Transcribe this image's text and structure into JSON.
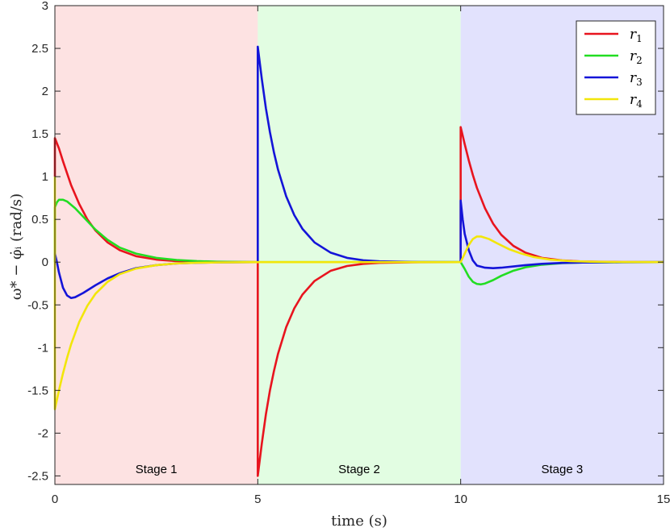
{
  "chart_data": {
    "type": "line",
    "xlabel": "time (s)",
    "ylabel": "ω* − φ̇ᵢ (rad/s)",
    "xlim": [
      0,
      15
    ],
    "ylim": [
      -2.6,
      3
    ],
    "x_ticks": [
      0,
      5,
      10,
      15
    ],
    "y_ticks": [
      -2.5,
      -2,
      -1.5,
      -1,
      -0.5,
      0,
      0.5,
      1,
      1.5,
      2,
      2.5,
      3
    ],
    "grid": false,
    "legend_position": "top-right",
    "stages": [
      {
        "label": "Stage 1",
        "x_start": 0,
        "x_end": 5,
        "color": "#fde2e2"
      },
      {
        "label": "Stage 2",
        "x_start": 5,
        "x_end": 10,
        "color": "#e2fde2"
      },
      {
        "label": "Stage 3",
        "x_start": 10,
        "x_end": 15,
        "color": "#e2e2fd"
      }
    ],
    "series": [
      {
        "name": "r1",
        "legend_base": "r",
        "legend_sub": "1",
        "color": "#e8141e",
        "points": [
          [
            0,
            1.0
          ],
          [
            0,
            1.45
          ],
          [
            0.1,
            1.33
          ],
          [
            0.2,
            1.18
          ],
          [
            0.3,
            1.04
          ],
          [
            0.4,
            0.9
          ],
          [
            0.6,
            0.68
          ],
          [
            0.8,
            0.5
          ],
          [
            1.0,
            0.37
          ],
          [
            1.3,
            0.23
          ],
          [
            1.6,
            0.14
          ],
          [
            2.0,
            0.07
          ],
          [
            2.5,
            0.03
          ],
          [
            3.0,
            0.012
          ],
          [
            3.5,
            0.005
          ],
          [
            4.0,
            0.002
          ],
          [
            5.0,
            0.0
          ],
          [
            5.0,
            -2.5
          ],
          [
            5.1,
            -2.12
          ],
          [
            5.2,
            -1.78
          ],
          [
            5.3,
            -1.5
          ],
          [
            5.4,
            -1.27
          ],
          [
            5.5,
            -1.07
          ],
          [
            5.7,
            -0.76
          ],
          [
            5.9,
            -0.54
          ],
          [
            6.1,
            -0.38
          ],
          [
            6.4,
            -0.22
          ],
          [
            6.8,
            -0.1
          ],
          [
            7.2,
            -0.045
          ],
          [
            7.6,
            -0.02
          ],
          [
            8.0,
            -0.008
          ],
          [
            9.0,
            -0.001
          ],
          [
            10.0,
            0.0
          ],
          [
            10.0,
            0.0
          ],
          [
            10.0,
            1.58
          ],
          [
            10.1,
            1.38
          ],
          [
            10.2,
            1.19
          ],
          [
            10.3,
            1.02
          ],
          [
            10.4,
            0.87
          ],
          [
            10.6,
            0.63
          ],
          [
            10.8,
            0.45
          ],
          [
            11.0,
            0.32
          ],
          [
            11.3,
            0.19
          ],
          [
            11.6,
            0.11
          ],
          [
            12.0,
            0.05
          ],
          [
            12.5,
            0.02
          ],
          [
            13.0,
            0.008
          ],
          [
            14.0,
            0.001
          ],
          [
            15.0,
            0.0
          ]
        ]
      },
      {
        "name": "r2",
        "legend_base": "r",
        "legend_sub": "2",
        "color": "#22dd22",
        "points": [
          [
            0,
            0.0
          ],
          [
            0,
            0.64
          ],
          [
            0.05,
            0.7
          ],
          [
            0.1,
            0.73
          ],
          [
            0.2,
            0.73
          ],
          [
            0.3,
            0.71
          ],
          [
            0.5,
            0.63
          ],
          [
            0.7,
            0.53
          ],
          [
            1.0,
            0.38
          ],
          [
            1.3,
            0.26
          ],
          [
            1.6,
            0.17
          ],
          [
            2.0,
            0.1
          ],
          [
            2.5,
            0.05
          ],
          [
            3.0,
            0.025
          ],
          [
            3.5,
            0.012
          ],
          [
            4.0,
            0.005
          ],
          [
            5.0,
            0.0
          ],
          [
            10.0,
            0.0
          ],
          [
            10.1,
            -0.08
          ],
          [
            10.2,
            -0.17
          ],
          [
            10.3,
            -0.23
          ],
          [
            10.4,
            -0.255
          ],
          [
            10.5,
            -0.26
          ],
          [
            10.6,
            -0.25
          ],
          [
            10.8,
            -0.21
          ],
          [
            11.0,
            -0.16
          ],
          [
            11.3,
            -0.1
          ],
          [
            11.6,
            -0.06
          ],
          [
            12.0,
            -0.03
          ],
          [
            12.5,
            -0.012
          ],
          [
            13.0,
            -0.005
          ],
          [
            14.0,
            -0.001
          ],
          [
            15.0,
            0.0
          ]
        ]
      },
      {
        "name": "r3",
        "legend_base": "r",
        "legend_sub": "3",
        "color": "#1414d8",
        "points": [
          [
            0,
            0.1
          ],
          [
            0.05,
            0.0
          ],
          [
            0.1,
            -0.12
          ],
          [
            0.2,
            -0.3
          ],
          [
            0.3,
            -0.39
          ],
          [
            0.4,
            -0.42
          ],
          [
            0.5,
            -0.41
          ],
          [
            0.7,
            -0.36
          ],
          [
            1.0,
            -0.27
          ],
          [
            1.3,
            -0.19
          ],
          [
            1.6,
            -0.13
          ],
          [
            2.0,
            -0.07
          ],
          [
            2.5,
            -0.035
          ],
          [
            3.0,
            -0.015
          ],
          [
            3.5,
            -0.007
          ],
          [
            4.0,
            -0.003
          ],
          [
            5.0,
            0.0
          ],
          [
            5.0,
            2.52
          ],
          [
            5.1,
            2.14
          ],
          [
            5.2,
            1.8
          ],
          [
            5.3,
            1.52
          ],
          [
            5.4,
            1.28
          ],
          [
            5.5,
            1.08
          ],
          [
            5.7,
            0.77
          ],
          [
            5.9,
            0.55
          ],
          [
            6.1,
            0.39
          ],
          [
            6.4,
            0.23
          ],
          [
            6.8,
            0.11
          ],
          [
            7.2,
            0.05
          ],
          [
            7.6,
            0.022
          ],
          [
            8.0,
            0.01
          ],
          [
            9.0,
            0.001
          ],
          [
            10.0,
            0.0
          ],
          [
            10.0,
            0.72
          ],
          [
            10.05,
            0.5
          ],
          [
            10.1,
            0.33
          ],
          [
            10.2,
            0.14
          ],
          [
            10.3,
            0.02
          ],
          [
            10.4,
            -0.04
          ],
          [
            10.6,
            -0.065
          ],
          [
            10.8,
            -0.07
          ],
          [
            11.0,
            -0.065
          ],
          [
            11.3,
            -0.05
          ],
          [
            11.6,
            -0.035
          ],
          [
            12.0,
            -0.02
          ],
          [
            12.5,
            -0.009
          ],
          [
            13.0,
            -0.004
          ],
          [
            14.0,
            -0.001
          ],
          [
            15.0,
            0.0
          ]
        ]
      },
      {
        "name": "r4",
        "legend_base": "r",
        "legend_sub": "4",
        "color": "#f2e60a",
        "points": [
          [
            0,
            1.0
          ],
          [
            0,
            -1.72
          ],
          [
            0.1,
            -1.5
          ],
          [
            0.2,
            -1.3
          ],
          [
            0.3,
            -1.12
          ],
          [
            0.4,
            -0.96
          ],
          [
            0.6,
            -0.7
          ],
          [
            0.8,
            -0.51
          ],
          [
            1.0,
            -0.37
          ],
          [
            1.3,
            -0.23
          ],
          [
            1.6,
            -0.14
          ],
          [
            2.0,
            -0.075
          ],
          [
            2.5,
            -0.035
          ],
          [
            3.0,
            -0.015
          ],
          [
            3.5,
            -0.007
          ],
          [
            4.0,
            -0.003
          ],
          [
            5.0,
            0.0
          ],
          [
            10.0,
            0.0
          ],
          [
            10.1,
            0.1
          ],
          [
            10.2,
            0.2
          ],
          [
            10.3,
            0.27
          ],
          [
            10.4,
            0.3
          ],
          [
            10.5,
            0.3
          ],
          [
            10.7,
            0.27
          ],
          [
            10.9,
            0.22
          ],
          [
            11.2,
            0.15
          ],
          [
            11.5,
            0.1
          ],
          [
            11.8,
            0.06
          ],
          [
            12.2,
            0.03
          ],
          [
            12.7,
            0.012
          ],
          [
            13.2,
            0.005
          ],
          [
            14.0,
            0.001
          ],
          [
            15.0,
            0.0
          ]
        ]
      }
    ]
  }
}
